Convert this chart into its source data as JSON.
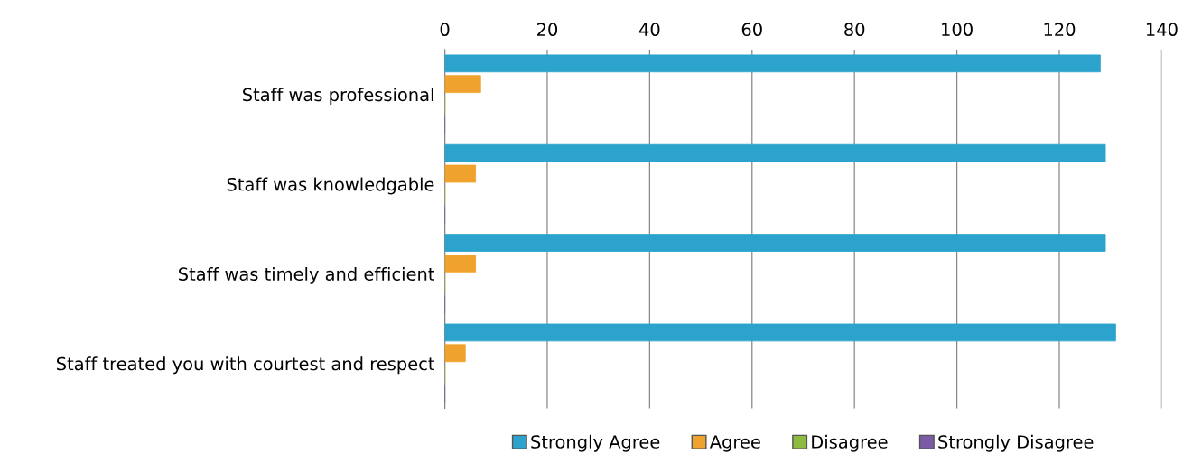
{
  "chart_data": {
    "type": "bar",
    "orientation": "horizontal",
    "categories": [
      "Staff was professional",
      "Staff was knowledgable",
      "Staff was timely and efficient",
      "Staff treated you with courtest and respect"
    ],
    "series": [
      {
        "name": "Strongly Agree",
        "color": "#2ba3cc",
        "values": [
          128,
          129,
          129,
          131
        ]
      },
      {
        "name": "Agree",
        "color": "#f0a22e",
        "values": [
          7,
          6,
          6,
          4
        ]
      },
      {
        "name": "Disagree",
        "color": "#8ebb3f",
        "values": [
          0,
          0,
          0,
          0
        ]
      },
      {
        "name": "Strongly Disagree",
        "color": "#7b5ba6",
        "values": [
          0,
          0,
          0,
          0
        ]
      }
    ],
    "xlim": [
      0,
      140
    ],
    "xticks": [
      0,
      20,
      40,
      60,
      80,
      100,
      120,
      140
    ],
    "grid": "x",
    "legend": "bottom"
  }
}
